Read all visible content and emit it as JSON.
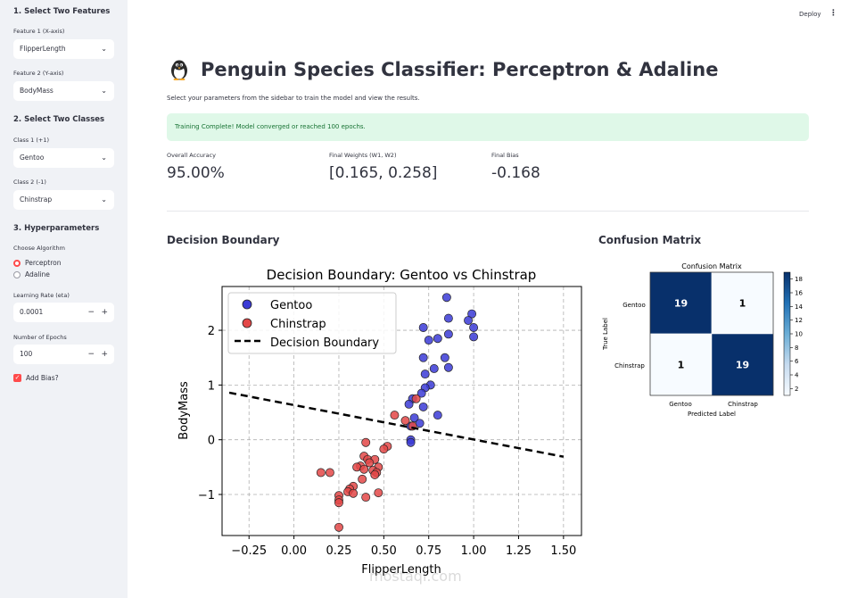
{
  "header": {
    "deploy_label": "Deploy",
    "menu_icon": "kebab-icon"
  },
  "sidebar": {
    "section1": "1. Select Two Features",
    "feature1_label": "Feature 1 (X-axis)",
    "feature1_value": "FlipperLength",
    "feature2_label": "Feature 2 (Y-axis)",
    "feature2_value": "BodyMass",
    "section2": "2. Select Two Classes",
    "class1_label": "Class 1 (+1)",
    "class1_value": "Gentoo",
    "class2_label": "Class 2 (-1)",
    "class2_value": "Chinstrap",
    "section3": "3. Hyperparameters",
    "algo_label": "Choose Algorithm",
    "algo_options": [
      "Perceptron",
      "Adaline"
    ],
    "algo_selected": "Perceptron",
    "lr_label": "Learning Rate (eta)",
    "lr_value": "0.0001",
    "epochs_label": "Number of Epochs",
    "epochs_value": "100",
    "bias_label": "Add Bias?",
    "bias_checked": true,
    "accent_color": "#ff4b4b"
  },
  "main": {
    "title": "Penguin Species Classifier: Perceptron & Adaline",
    "title_icon": "penguin-icon",
    "subtitle": "Select your parameters from the sidebar to train the model and view the results.",
    "success_message": "Training Complete! Model converged or reached 100 epochs.",
    "metrics": [
      {
        "label": "Overall Accuracy",
        "value": "95.00%"
      },
      {
        "label": "Final Weights (W1, W2)",
        "value": "[0.165, 0.258]"
      },
      {
        "label": "Final Bias",
        "value": "-0.168"
      }
    ],
    "decision_section_title": "Decision Boundary",
    "confusion_section_title": "Confusion Matrix"
  },
  "chart_data": [
    {
      "type": "scatter",
      "title": "Decision Boundary: Gentoo vs Chinstrap",
      "xlabel": "FlipperLength",
      "ylabel": "BodyMass",
      "xlim": [
        -0.4,
        1.6
      ],
      "ylim": [
        -1.75,
        2.8
      ],
      "xticks": [
        "−0.25",
        "0.00",
        "0.25",
        "0.50",
        "0.75",
        "1.00",
        "1.25",
        "1.50"
      ],
      "xtick_values": [
        -0.25,
        0,
        0.25,
        0.5,
        0.75,
        1.0,
        1.25,
        1.5
      ],
      "yticks": [
        "−1",
        "0",
        "1",
        "2"
      ],
      "ytick_values": [
        -1,
        0,
        1,
        2
      ],
      "grid": true,
      "legend_position": "top-left",
      "series": [
        {
          "name": "Gentoo",
          "color": "#3b3bd6",
          "points": [
            [
              0.85,
              2.6
            ],
            [
              0.99,
              2.3
            ],
            [
              0.97,
              2.18
            ],
            [
              1.0,
              2.05
            ],
            [
              1.0,
              1.88
            ],
            [
              0.86,
              2.22
            ],
            [
              0.86,
              1.93
            ],
            [
              0.8,
              1.85
            ],
            [
              0.75,
              1.82
            ],
            [
              0.72,
              2.05
            ],
            [
              0.84,
              1.5
            ],
            [
              0.72,
              1.5
            ],
            [
              0.86,
              1.32
            ],
            [
              0.78,
              1.3
            ],
            [
              0.73,
              1.2
            ],
            [
              0.76,
              1.0
            ],
            [
              0.73,
              0.95
            ],
            [
              0.71,
              0.85
            ],
            [
              0.66,
              0.75
            ],
            [
              0.64,
              0.65
            ],
            [
              0.72,
              0.6
            ],
            [
              0.67,
              0.4
            ],
            [
              0.65,
              0.25
            ],
            [
              0.7,
              0.3
            ],
            [
              0.65,
              0.0
            ],
            [
              0.65,
              -0.05
            ],
            [
              0.8,
              0.45
            ]
          ]
        },
        {
          "name": "Chinstrap",
          "color": "#e34848",
          "points": [
            [
              0.68,
              0.75
            ],
            [
              0.56,
              0.45
            ],
            [
              0.62,
              0.35
            ],
            [
              0.66,
              0.25
            ],
            [
              0.52,
              -0.12
            ],
            [
              0.5,
              -0.17
            ],
            [
              0.4,
              -0.05
            ],
            [
              0.39,
              -0.3
            ],
            [
              0.41,
              -0.36
            ],
            [
              0.45,
              -0.36
            ],
            [
              0.42,
              -0.42
            ],
            [
              0.37,
              -0.48
            ],
            [
              0.35,
              -0.5
            ],
            [
              0.47,
              -0.5
            ],
            [
              0.44,
              -0.56
            ],
            [
              0.46,
              -0.6
            ],
            [
              0.39,
              -0.54
            ],
            [
              0.45,
              -0.64
            ],
            [
              0.38,
              -0.72
            ],
            [
              0.33,
              -0.85
            ],
            [
              0.31,
              -0.9
            ],
            [
              0.3,
              -0.95
            ],
            [
              0.33,
              -0.98
            ],
            [
              0.47,
              -0.97
            ],
            [
              0.25,
              -1.02
            ],
            [
              0.25,
              -1.1
            ],
            [
              0.4,
              -1.05
            ],
            [
              0.25,
              -1.15
            ],
            [
              0.2,
              -0.6
            ],
            [
              0.15,
              -0.6
            ],
            [
              0.25,
              -1.6
            ]
          ]
        },
        {
          "name": "Decision Boundary",
          "color": "#000000",
          "style": "dashed",
          "line": [
            [
              -0.36,
              0.86
            ],
            [
              1.5,
              -0.31
            ]
          ]
        }
      ]
    },
    {
      "type": "heatmap",
      "title": "Confusion Matrix",
      "xlabel": "Predicted Label",
      "ylabel": "True Label",
      "x_categories": [
        "Gentoo",
        "Chinstrap"
      ],
      "y_categories": [
        "Gentoo",
        "Chinstrap"
      ],
      "values": [
        [
          19,
          1
        ],
        [
          1,
          19
        ]
      ],
      "colorbar_ticks": [
        "2",
        "4",
        "6",
        "8",
        "10",
        "12",
        "14",
        "16",
        "18"
      ],
      "colorbar_values": [
        2,
        4,
        6,
        8,
        10,
        12,
        14,
        16,
        18
      ],
      "vmin": 1,
      "vmax": 19,
      "colormap": "Blues"
    }
  ],
  "watermark": "mostaql.com"
}
